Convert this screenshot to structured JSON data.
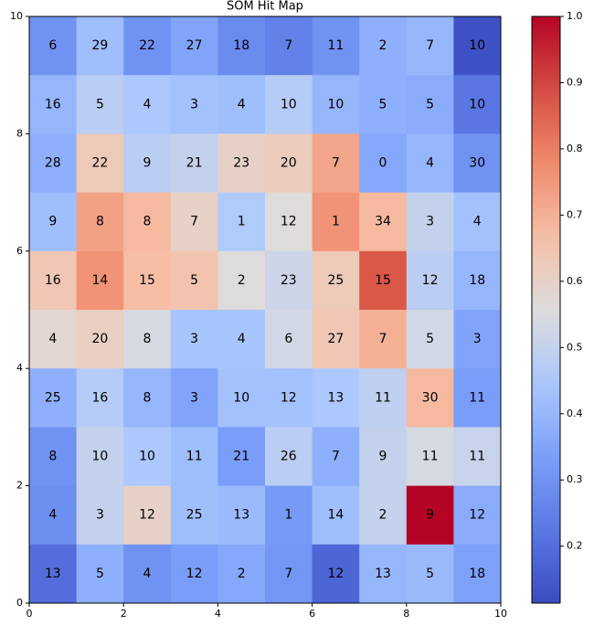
{
  "chart_data": {
    "type": "heatmap",
    "title": "SOM Hit Map",
    "colormap": "coolwarm",
    "xlim": [
      0,
      10
    ],
    "xticks": [
      0,
      2,
      4,
      6,
      8,
      10
    ],
    "ylim": [
      0,
      10
    ],
    "yticks": [
      0,
      2,
      4,
      6,
      8,
      10
    ],
    "clim": [
      0.114,
      1.0
    ],
    "cticks": [
      {
        "value": 0.2,
        "label": "0.2"
      },
      {
        "value": 0.3,
        "label": "0.3"
      },
      {
        "value": 0.4,
        "label": "0.4"
      },
      {
        "value": 0.5,
        "label": "0.5"
      },
      {
        "value": 0.6,
        "label": "0.6"
      },
      {
        "value": 0.7,
        "label": "0.7"
      },
      {
        "value": 0.8,
        "label": "0.8"
      },
      {
        "value": 0.9,
        "label": "0.9"
      },
      {
        "value": 1.0,
        "label": "1.0"
      }
    ],
    "z": [
      [
        0.3,
        0.42,
        0.3,
        0.35,
        0.28,
        0.25,
        0.3,
        0.38,
        0.4,
        0.13
      ],
      [
        0.4,
        0.48,
        0.45,
        0.43,
        0.42,
        0.47,
        0.4,
        0.38,
        0.37,
        0.22
      ],
      [
        0.38,
        0.63,
        0.48,
        0.5,
        0.6,
        0.62,
        0.72,
        0.36,
        0.4,
        0.3
      ],
      [
        0.42,
        0.73,
        0.68,
        0.6,
        0.46,
        0.56,
        0.76,
        0.68,
        0.5,
        0.43
      ],
      [
        0.64,
        0.76,
        0.67,
        0.65,
        0.56,
        0.52,
        0.63,
        0.87,
        0.48,
        0.4
      ],
      [
        0.58,
        0.61,
        0.54,
        0.44,
        0.44,
        0.53,
        0.64,
        0.7,
        0.53,
        0.35
      ],
      [
        0.38,
        0.47,
        0.4,
        0.35,
        0.43,
        0.43,
        0.45,
        0.49,
        0.68,
        0.33
      ],
      [
        0.3,
        0.5,
        0.45,
        0.42,
        0.33,
        0.48,
        0.38,
        0.5,
        0.54,
        0.51
      ],
      [
        0.29,
        0.5,
        0.6,
        0.42,
        0.41,
        0.32,
        0.42,
        0.5,
        1.0,
        0.37
      ],
      [
        0.2,
        0.38,
        0.3,
        0.33,
        0.36,
        0.31,
        0.18,
        0.4,
        0.41,
        0.34
      ]
    ],
    "labels": [
      [
        6,
        29,
        22,
        27,
        18,
        7,
        11,
        2,
        7,
        10
      ],
      [
        16,
        5,
        4,
        3,
        4,
        10,
        10,
        5,
        5,
        10
      ],
      [
        28,
        22,
        9,
        21,
        23,
        20,
        7,
        0,
        4,
        30
      ],
      [
        9,
        8,
        8,
        7,
        1,
        12,
        1,
        34,
        3,
        4
      ],
      [
        16,
        14,
        15,
        5,
        2,
        23,
        25,
        15,
        12,
        18
      ],
      [
        4,
        20,
        8,
        3,
        4,
        6,
        27,
        7,
        5,
        3
      ],
      [
        25,
        16,
        8,
        3,
        10,
        12,
        13,
        11,
        30,
        11
      ],
      [
        8,
        10,
        10,
        11,
        21,
        26,
        7,
        9,
        11,
        11
      ],
      [
        4,
        3,
        12,
        25,
        13,
        1,
        14,
        2,
        9,
        12
      ],
      [
        13,
        5,
        4,
        12,
        2,
        7,
        12,
        13,
        5,
        18
      ]
    ]
  }
}
